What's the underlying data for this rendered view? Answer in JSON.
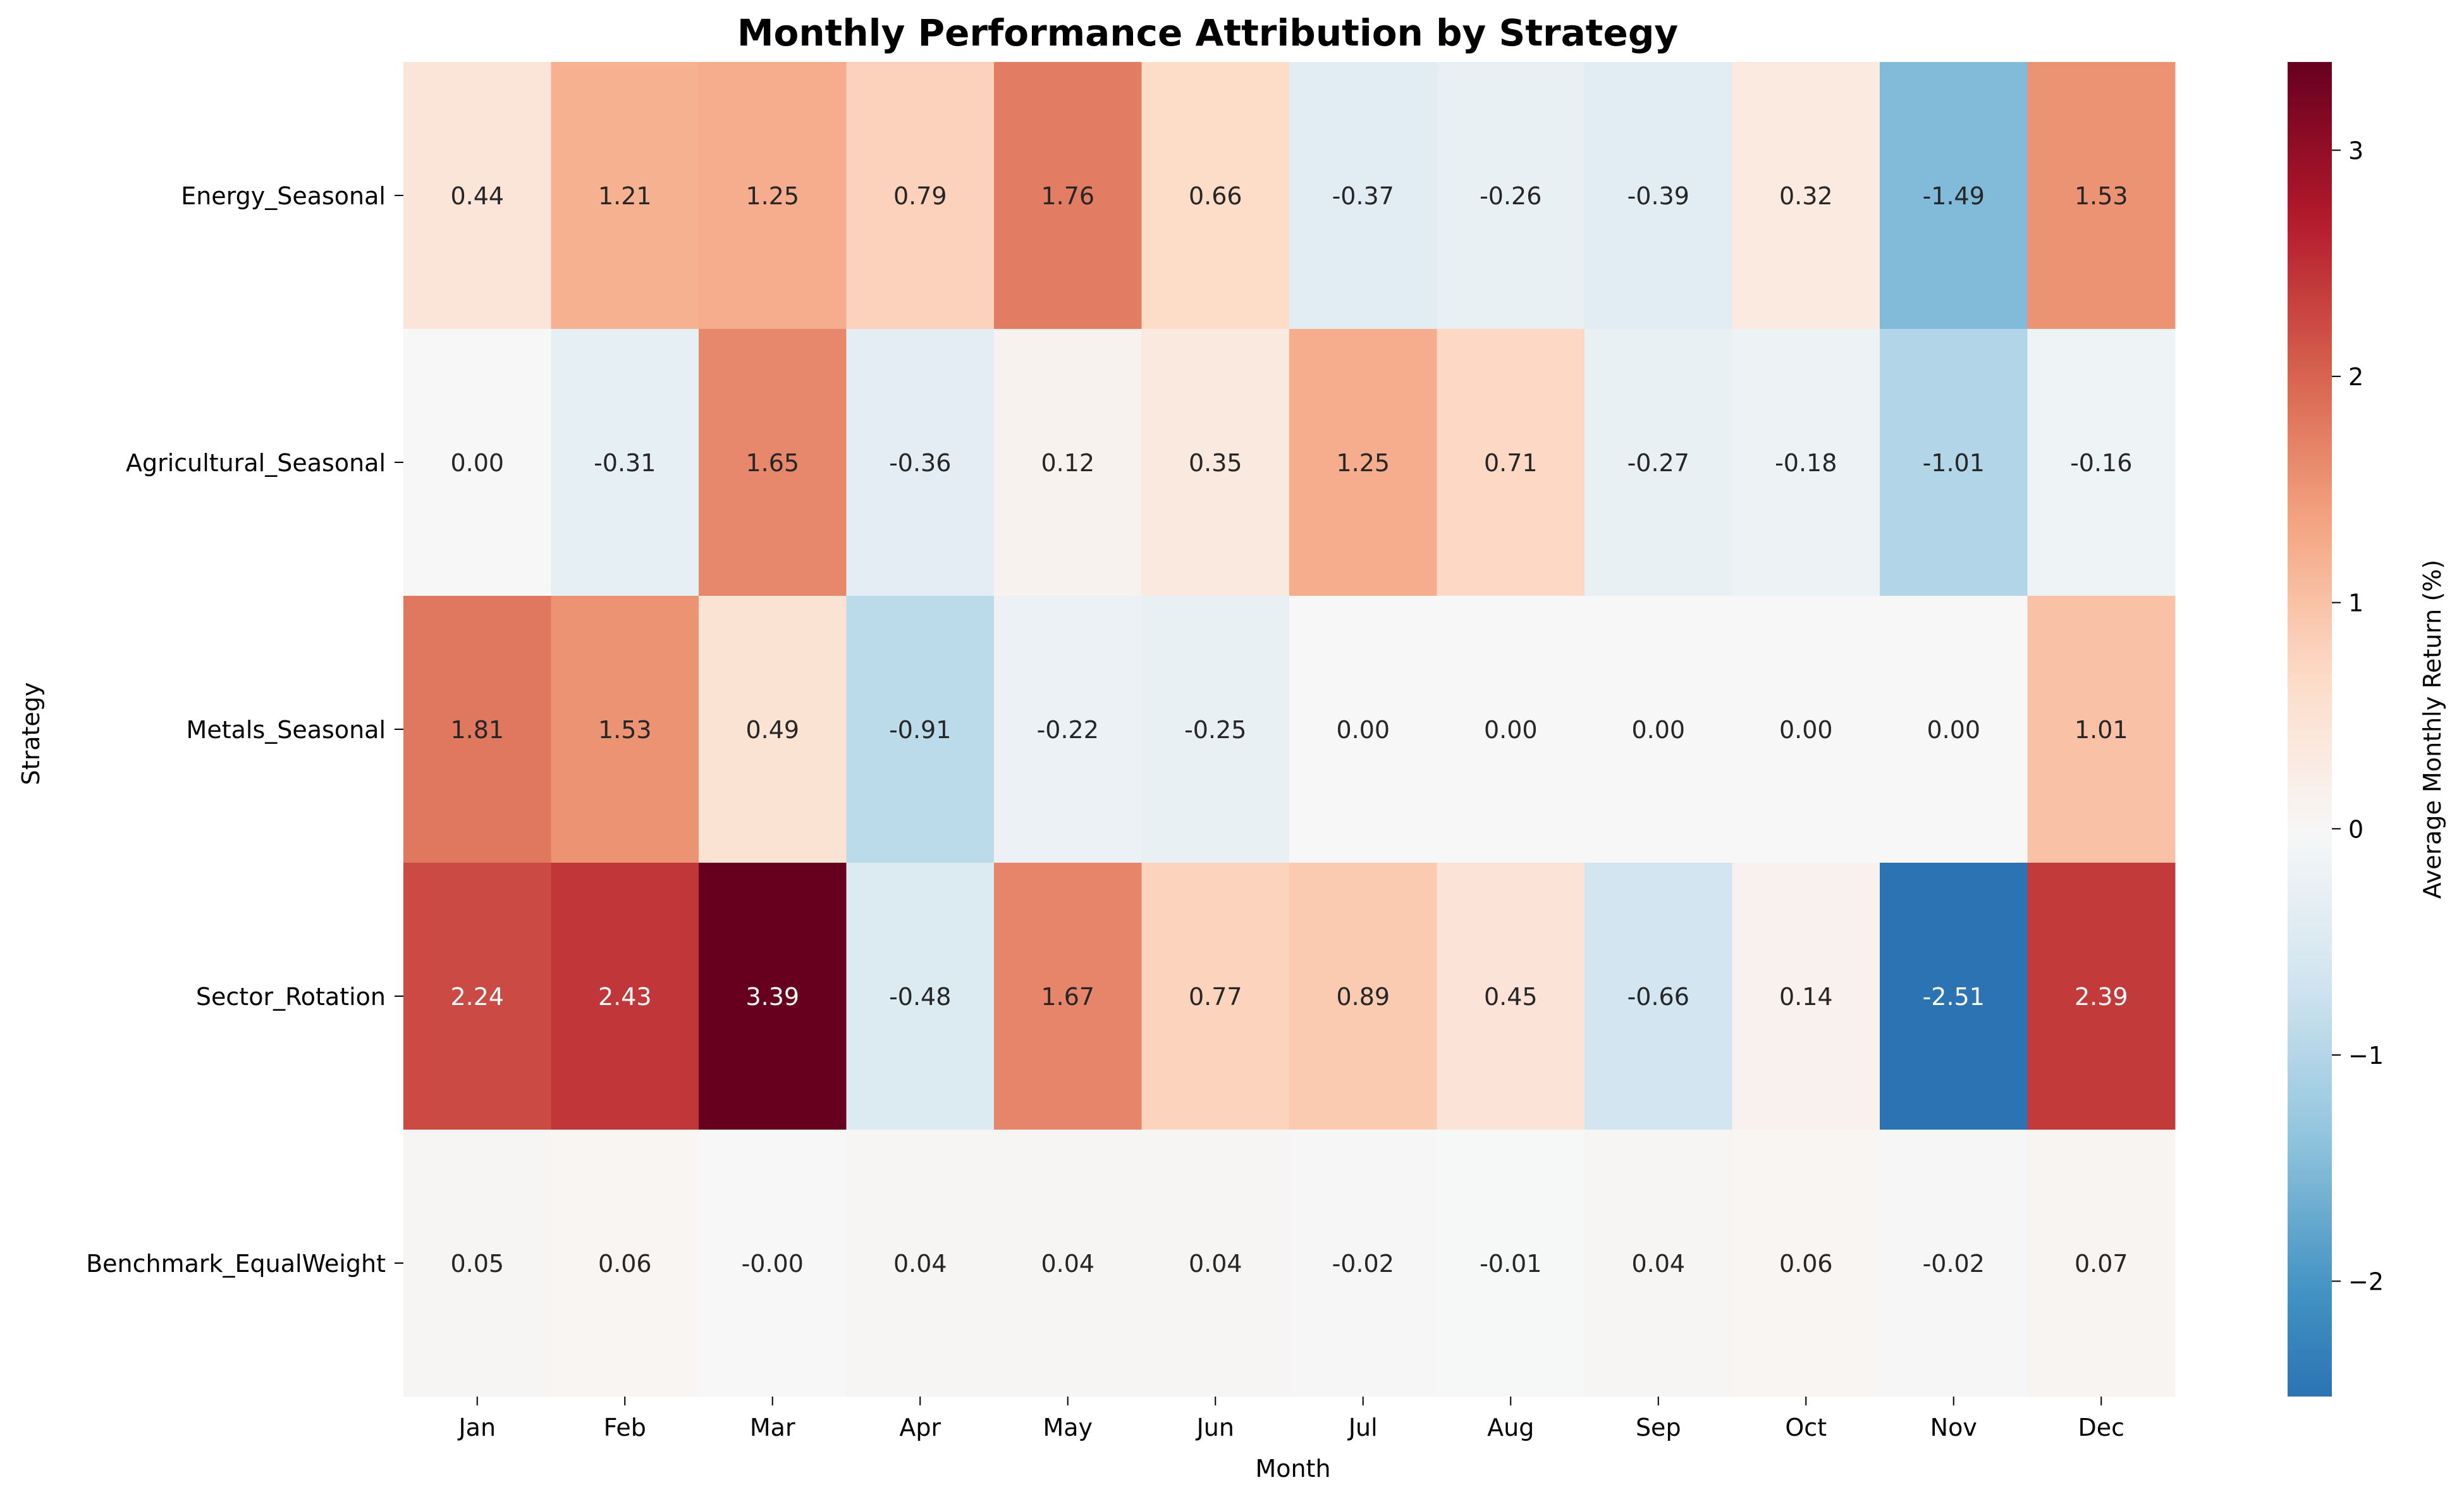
{
  "chart_data": {
    "type": "heatmap",
    "title": "Monthly Performance Attribution by Strategy",
    "xlabel": "Month",
    "ylabel": "Strategy",
    "colorbar_label": "Average Monthly Return (%)",
    "colormap": "RdBu_r",
    "center": 0,
    "vmin": -2.51,
    "vmax": 3.39,
    "colorbar_ticks": [
      -2,
      -1,
      0,
      1,
      2,
      3
    ],
    "colorbar_tick_labels": [
      "−2",
      "−1",
      "0",
      "1",
      "2",
      "3"
    ],
    "columns": [
      "Jan",
      "Feb",
      "Mar",
      "Apr",
      "May",
      "Jun",
      "Jul",
      "Aug",
      "Sep",
      "Oct",
      "Nov",
      "Dec"
    ],
    "rows": [
      "Energy_Seasonal",
      "Agricultural_Seasonal",
      "Metals_Seasonal",
      "Sector_Rotation",
      "Benchmark_EqualWeight"
    ],
    "values": [
      [
        0.44,
        1.21,
        1.25,
        0.79,
        1.76,
        0.66,
        -0.37,
        -0.26,
        -0.39,
        0.32,
        -1.49,
        1.53
      ],
      [
        0.0,
        -0.31,
        1.65,
        -0.36,
        0.12,
        0.35,
        1.25,
        0.71,
        -0.27,
        -0.18,
        -1.01,
        -0.16
      ],
      [
        1.81,
        1.53,
        0.49,
        -0.91,
        -0.22,
        -0.25,
        0.0,
        0.0,
        0.0,
        0.0,
        0.0,
        1.01
      ],
      [
        2.24,
        2.43,
        3.39,
        -0.48,
        1.67,
        0.77,
        0.89,
        0.45,
        -0.66,
        0.14,
        -2.51,
        2.39
      ],
      [
        0.05,
        0.06,
        -0.001,
        0.04,
        0.04,
        0.04,
        -0.02,
        -0.01,
        0.04,
        0.06,
        -0.02,
        0.07
      ]
    ],
    "annotations": [
      [
        "0.44",
        "1.21",
        "1.25",
        "0.79",
        "1.76",
        "0.66",
        "-0.37",
        "-0.26",
        "-0.39",
        "0.32",
        "-1.49",
        "1.53"
      ],
      [
        "0.00",
        "-0.31",
        "1.65",
        "-0.36",
        "0.12",
        "0.35",
        "1.25",
        "0.71",
        "-0.27",
        "-0.18",
        "-1.01",
        "-0.16"
      ],
      [
        "1.81",
        "1.53",
        "0.49",
        "-0.91",
        "-0.22",
        "-0.25",
        "0.00",
        "0.00",
        "0.00",
        "0.00",
        "0.00",
        "1.01"
      ],
      [
        "2.24",
        "2.43",
        "3.39",
        "-0.48",
        "1.67",
        "0.77",
        "0.89",
        "0.45",
        "-0.66",
        "0.14",
        "-2.51",
        "2.39"
      ],
      [
        "0.05",
        "0.06",
        "-0.00",
        "0.04",
        "0.04",
        "0.04",
        "-0.02",
        "-0.01",
        "0.04",
        "0.06",
        "-0.02",
        "0.07"
      ]
    ]
  }
}
